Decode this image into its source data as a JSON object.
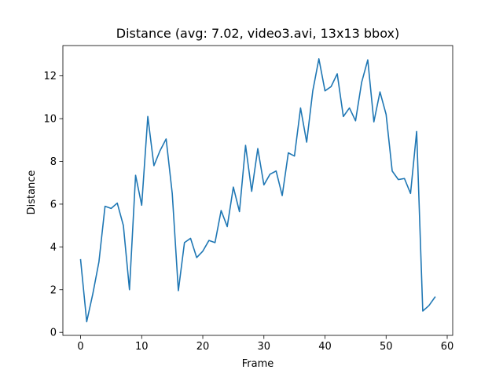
{
  "chart_data": {
    "type": "line",
    "title": "Distance (avg: 7.02, video3.avi, 13x13 bbox)",
    "xlabel": "Frame",
    "ylabel": "Distance",
    "xlim": [
      -2.9,
      60.9
    ],
    "ylim": [
      -0.14,
      13.42
    ],
    "xticks": [
      0,
      10,
      20,
      30,
      40,
      50,
      60
    ],
    "yticks": [
      0,
      2,
      4,
      6,
      8,
      10,
      12
    ],
    "grid": false,
    "line_color": "#1f77b4",
    "series": [
      {
        "x": [
          0,
          1,
          2,
          3,
          4,
          5,
          6,
          7,
          8,
          9,
          10,
          11,
          12,
          13,
          14,
          15,
          16,
          17,
          18,
          19,
          20,
          21,
          22,
          23,
          24,
          25,
          26,
          27,
          28,
          29,
          30,
          31,
          32,
          33,
          34,
          35,
          36,
          37,
          38,
          39,
          40,
          41,
          42,
          43,
          44,
          45,
          46,
          47,
          48,
          49,
          50,
          51,
          52,
          53,
          54,
          55,
          56,
          57,
          58
        ],
        "y": [
          3.4,
          0.5,
          1.8,
          3.3,
          5.9,
          5.8,
          6.05,
          5.0,
          2.0,
          7.35,
          5.95,
          10.1,
          7.8,
          8.5,
          9.05,
          6.5,
          1.95,
          4.2,
          4.4,
          3.5,
          3.8,
          4.3,
          4.2,
          5.7,
          4.95,
          6.8,
          5.65,
          8.75,
          6.6,
          8.6,
          6.9,
          7.4,
          7.55,
          6.4,
          8.4,
          8.25,
          10.5,
          8.9,
          11.3,
          12.8,
          11.3,
          11.5,
          12.1,
          10.1,
          10.5,
          9.9,
          11.7,
          12.75,
          9.85,
          11.25,
          10.2,
          7.55,
          7.15,
          7.2,
          6.5,
          9.4,
          1.0,
          1.25,
          1.65
        ]
      }
    ]
  }
}
